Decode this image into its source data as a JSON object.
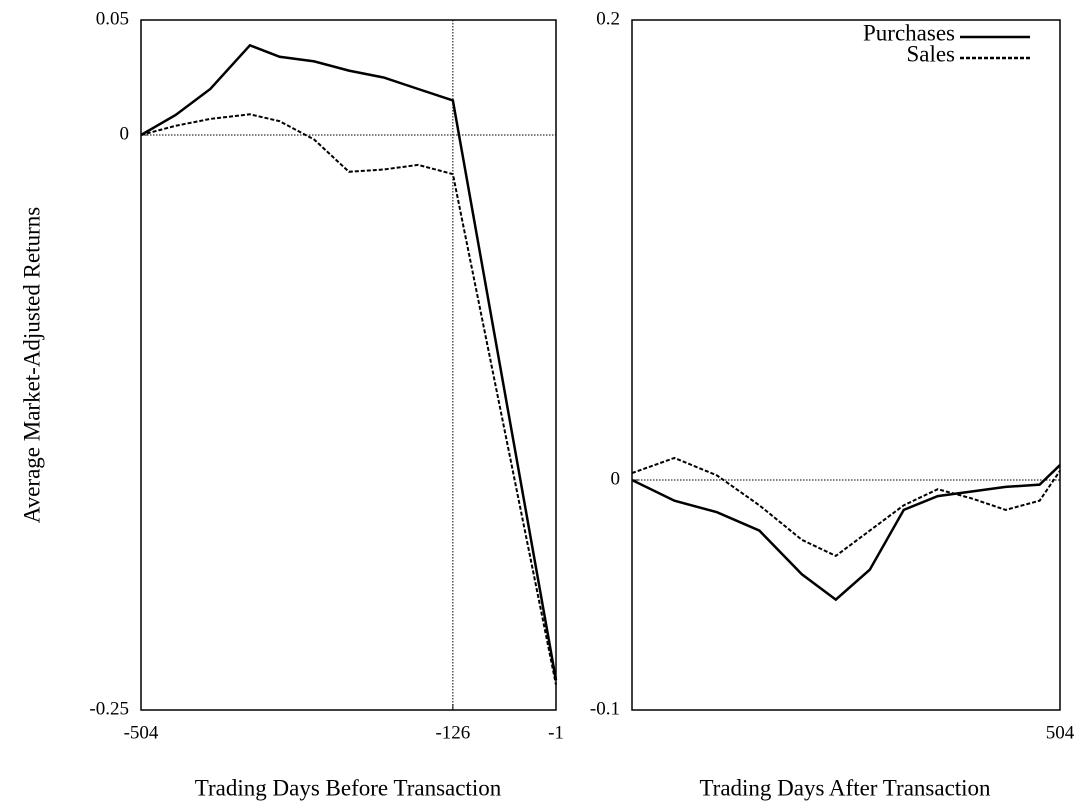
{
  "chart_data": [
    {
      "type": "line",
      "ylabel": "Average Market-Adjusted Returns",
      "xlabel": "Trading Days Before Transaction",
      "x": [
        -504,
        -462,
        -420,
        -372,
        -336,
        -294,
        -252,
        -210,
        -168,
        -126,
        -1
      ],
      "series": [
        {
          "name": "Purchases",
          "color": "#000000",
          "line_style": "solid",
          "values": [
            0,
            0.0087,
            0.02,
            0.039,
            0.034,
            0.032,
            0.028,
            0.025,
            0.02,
            0.015,
            -0.237
          ]
        },
        {
          "name": "Sales",
          "color": "#000000",
          "line_style": "dashed",
          "values": [
            0,
            0.004,
            0.007,
            0.009,
            0.006,
            -0.002,
            -0.016,
            -0.015,
            -0.013,
            -0.017,
            -0.239
          ]
        }
      ],
      "xlim": [
        -504,
        -1
      ],
      "xticks": [
        -504,
        -126,
        -1
      ],
      "ylim": [
        -0.25,
        0.05
      ],
      "yticks": [
        -0.25,
        0,
        0.05
      ],
      "hlines": [
        0
      ],
      "vlines": [
        -126
      ]
    },
    {
      "type": "line",
      "xlabel": "Trading Days After Transaction",
      "x": [
        0,
        50,
        100,
        150,
        200,
        240,
        280,
        320,
        360,
        400,
        440,
        480,
        504
      ],
      "series": [
        {
          "name": "Purchases",
          "color": "#000000",
          "line_style": "solid",
          "values": [
            0,
            -0.009,
            -0.014,
            -0.022,
            -0.041,
            -0.052,
            -0.039,
            -0.013,
            -0.007,
            -0.005,
            -0.003,
            -0.002,
            0.0065
          ]
        },
        {
          "name": "Sales",
          "color": "#000000",
          "line_style": "dashed",
          "values": [
            0.003,
            0.0096,
            0.002,
            -0.011,
            -0.026,
            -0.033,
            -0.022,
            -0.011,
            -0.004,
            -0.008,
            -0.013,
            -0.009,
            0.004
          ]
        }
      ],
      "xlim": [
        0,
        504
      ],
      "xticks": [
        504
      ],
      "ylim": [
        -0.1,
        0.2
      ],
      "yticks": [
        -0.1,
        0,
        0.2
      ],
      "hlines": [
        0
      ],
      "legend": "upper right"
    }
  ]
}
